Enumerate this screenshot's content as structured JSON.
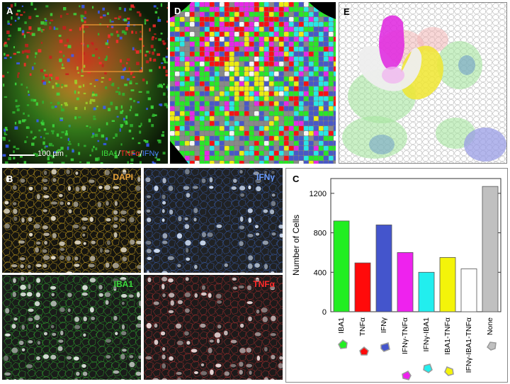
{
  "panels": {
    "A": {
      "label": "A",
      "scale_bar": "100 µm",
      "stain_legend": [
        {
          "text": "IBA1",
          "color": "#3ddc3d"
        },
        {
          "text": "/",
          "color": "#ffffff"
        },
        {
          "text": "TNFα",
          "color": "#ff2a2a"
        },
        {
          "text": "/",
          "color": "#ffffff"
        },
        {
          "text": "IFNγ",
          "color": "#4a7dff"
        }
      ]
    },
    "B": {
      "label": "B"
    },
    "C": {
      "label": "C"
    },
    "D": {
      "label": "D"
    },
    "E": {
      "label": "E"
    },
    "micrographs": [
      {
        "name": "dapi-channel",
        "label": "DAPI",
        "text_color": "#e8a33a",
        "cell_color": "#efe6cf",
        "outline": "#c8a021",
        "bg": "#161510"
      },
      {
        "name": "ifng-channel",
        "label": "IFNγ",
        "text_color": "#6a9cff",
        "cell_color": "#d6e6ff",
        "outline": "#3a5ca8",
        "bg": "#202224"
      },
      {
        "name": "iba1-channel",
        "label": "IBA1",
        "text_color": "#3ddc3d",
        "cell_color": "#e8f2e8",
        "outline": "#2fa82f",
        "bg": "#1a1c1a"
      },
      {
        "name": "tnfa-channel",
        "label": "TNFα",
        "text_color": "#ff2a2a",
        "cell_color": "#f2dede",
        "outline": "#a83030",
        "bg": "#1c1a1a"
      }
    ]
  },
  "chart_data": {
    "type": "bar",
    "ylabel": "Number of Cells",
    "ylim": [
      0,
      1350
    ],
    "yticks": [
      0,
      400,
      800,
      1200
    ],
    "categories": [
      "IBA1",
      "TNFα",
      "IFNγ",
      "IFNγ-TNFα",
      "IFNγ-IBA1",
      "IBA1-TNFα",
      "IFNγ-IBA1-TNFα",
      "None"
    ],
    "values": [
      920,
      495,
      880,
      600,
      400,
      550,
      435,
      1270
    ],
    "colors": [
      "#22ee22",
      "#ff0a0a",
      "#4455cc",
      "#ee22ee",
      "#22eeee",
      "#f4f40a",
      "#ffffff",
      "#c0c0c0"
    ],
    "legend_position": "below x-axis"
  }
}
